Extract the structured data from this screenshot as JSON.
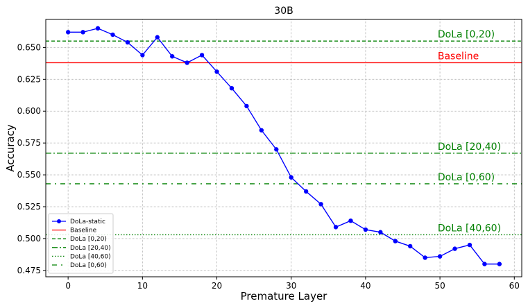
{
  "chart_data": {
    "type": "line",
    "title": "30B",
    "xlabel": "Premature Layer",
    "ylabel": "Accuracy",
    "xlim": [
      -3,
      61
    ],
    "ylim": [
      0.47,
      0.672
    ],
    "grid": true,
    "legend_position": "lower-left",
    "xticks": [
      0,
      10,
      20,
      30,
      40,
      50,
      60
    ],
    "yticks": [
      0.475,
      0.5,
      0.525,
      0.55,
      0.575,
      0.6,
      0.625,
      0.65
    ],
    "series": [
      {
        "name": "DoLa-static",
        "color": "#0000ff",
        "style": "solid-with-markers",
        "x": [
          0,
          2,
          4,
          6,
          8,
          10,
          12,
          14,
          16,
          18,
          20,
          22,
          24,
          26,
          28,
          30,
          32,
          34,
          36,
          38,
          40,
          42,
          44,
          46,
          48,
          50,
          52,
          54,
          56,
          58
        ],
        "y": [
          0.662,
          0.662,
          0.665,
          0.66,
          0.654,
          0.644,
          0.658,
          0.643,
          0.638,
          0.644,
          0.631,
          0.618,
          0.604,
          0.585,
          0.57,
          0.548,
          0.537,
          0.527,
          0.509,
          0.514,
          0.507,
          0.505,
          0.498,
          0.494,
          0.485,
          0.486,
          0.492,
          0.495,
          0.48,
          0.48
        ]
      }
    ],
    "hlines": [
      {
        "name": "Baseline",
        "y": 0.638,
        "color": "#ff0000",
        "style": "solid",
        "label": "Baseline"
      },
      {
        "name": "DoLa [0,20)",
        "y": 0.655,
        "color": "#008000",
        "style": "dashed",
        "label": "DoLa [0,20)"
      },
      {
        "name": "DoLa [20,40)",
        "y": 0.567,
        "color": "#008000",
        "style": "dashdot",
        "label": "DoLa [20,40)"
      },
      {
        "name": "DoLa [40,60)",
        "y": 0.503,
        "color": "#008000",
        "style": "dotted",
        "label": "DoLa [40,60)"
      },
      {
        "name": "DoLa [0,60)",
        "y": 0.543,
        "color": "#008000",
        "style": "loose-dashdot",
        "label": "DoLa [0,60)"
      }
    ],
    "legend": [
      "DoLa-static",
      "Baseline",
      "DoLa [0,20)",
      "DoLa [20,40)",
      "DoLa [40,60)",
      "DoLa [0,60)"
    ]
  }
}
